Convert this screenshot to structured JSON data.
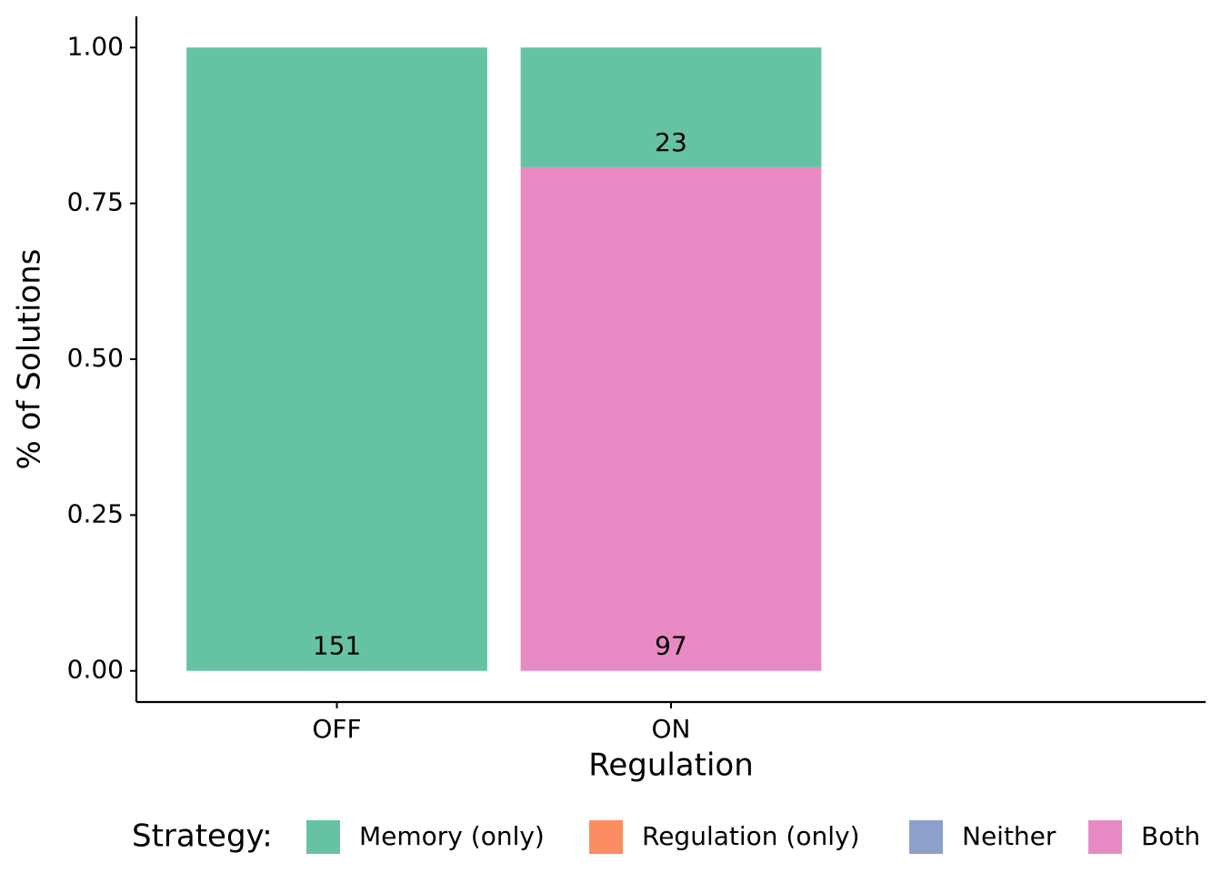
{
  "chart_data": {
    "type": "stacked_bar",
    "x_label": "Regulation",
    "y_label": "% of Solutions",
    "legend_title": "Strategy:",
    "categories": [
      "OFF",
      "ON"
    ],
    "series": [
      {
        "name": "Memory (only)",
        "color": "#66c2a5",
        "values": [
          1.0,
          0.192
        ],
        "counts": [
          151,
          23
        ]
      },
      {
        "name": "Regulation (only)",
        "color": "#fc8d62",
        "values": [
          0,
          0
        ]
      },
      {
        "name": "Neither",
        "color": "#8da0cb",
        "values": [
          0,
          0
        ]
      },
      {
        "name": "Both",
        "color": "#e78ac3",
        "values": [
          0,
          0.808
        ],
        "counts": [
          null,
          97
        ]
      }
    ],
    "ylim": [
      -0.05,
      1.05
    ],
    "yticks": [
      {
        "value": 0,
        "label": "0.00"
      },
      {
        "value": 0.25,
        "label": "0.25"
      },
      {
        "value": 0.5,
        "label": "0.50"
      },
      {
        "value": 0.75,
        "label": "0.75"
      },
      {
        "value": 1,
        "label": "1.00"
      }
    ],
    "legend_position": "bottom"
  }
}
